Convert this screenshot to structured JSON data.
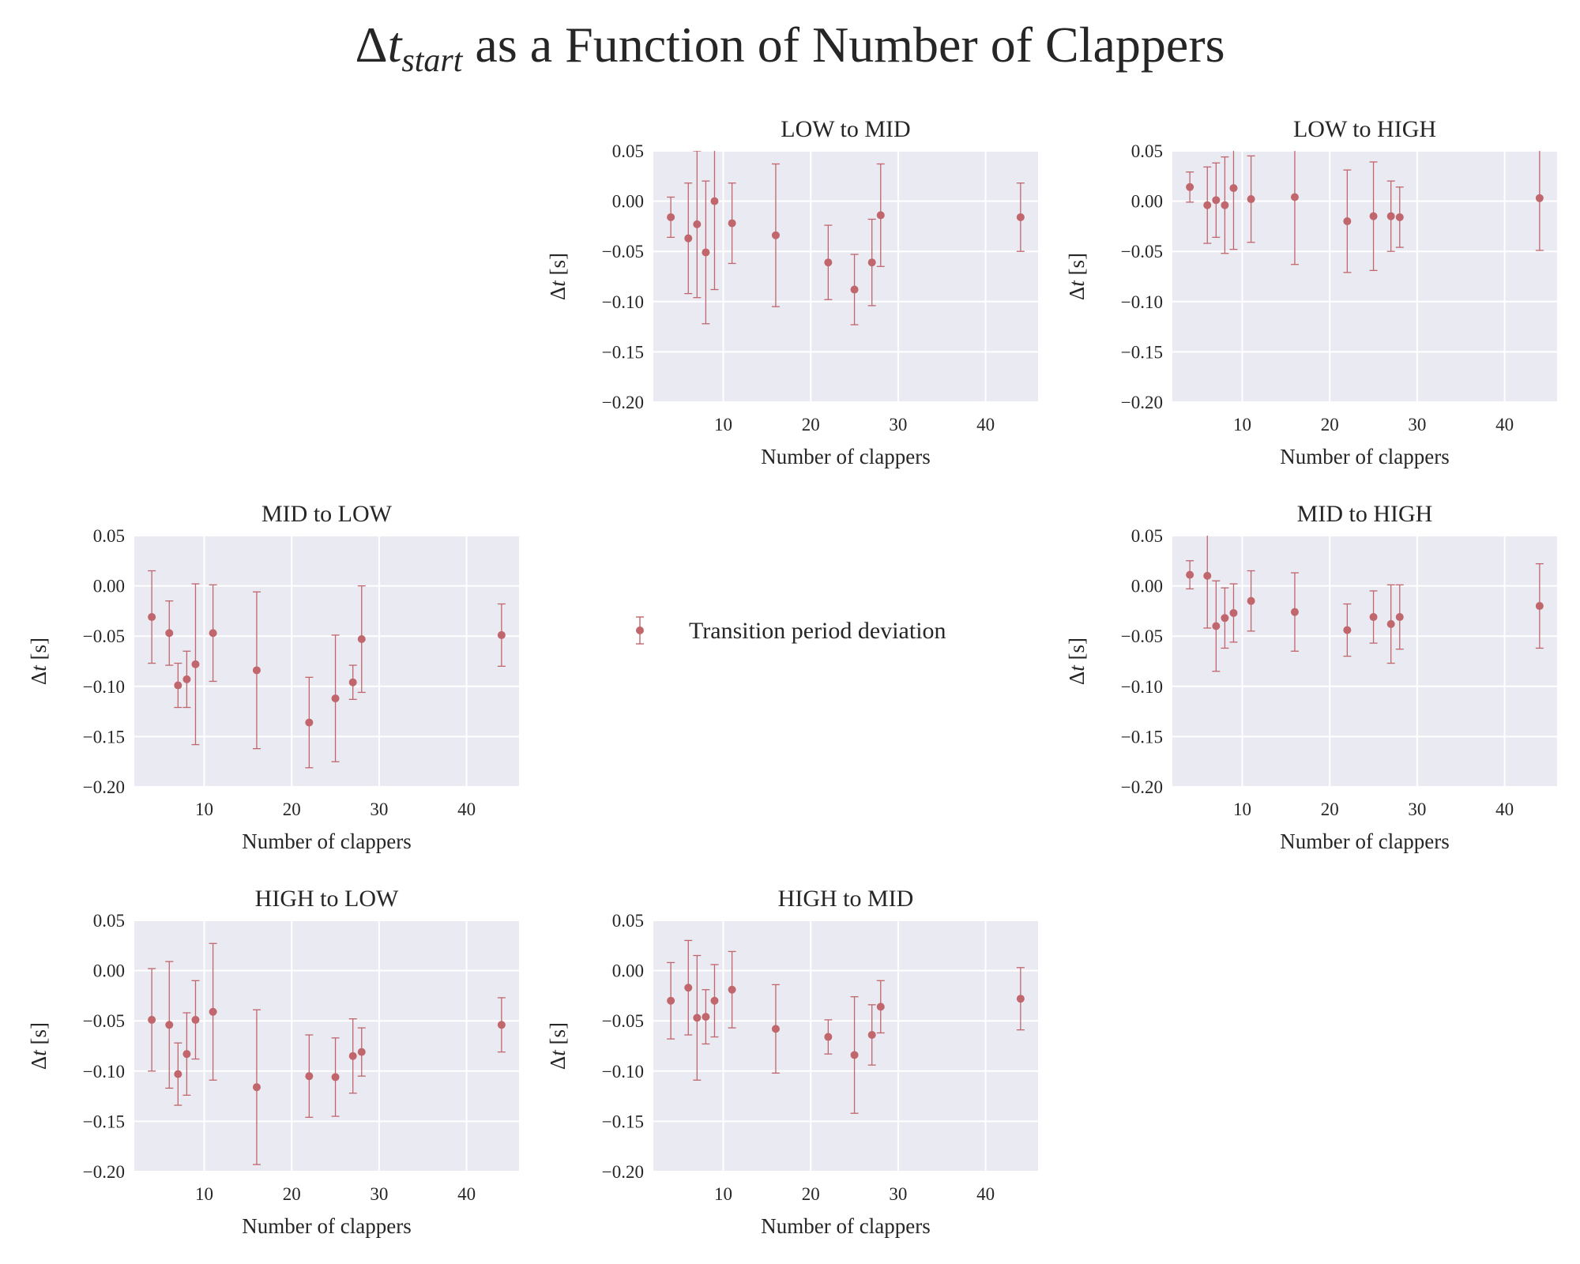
{
  "figure": {
    "title_prefix": "Δ",
    "title_var": "t",
    "title_sub": "start",
    "title_rest": " as a Function of Number of Clappers"
  },
  "legend": {
    "label": "Transition period deviation"
  },
  "style": {
    "marker_color": "#c0666c",
    "axes_bg": "#eaeaf2",
    "grid_color": "#ffffff"
  },
  "chart_data": [
    {
      "type": "scatter",
      "title": "LOW to MID",
      "xlabel": "Number of clappers",
      "ylabel_delta": "Δ",
      "ylabel_var": "t",
      "ylabel_unit": " [s]",
      "xlim": [
        2,
        46
      ],
      "ylim": [
        -0.2,
        0.05
      ],
      "xticks": [
        10,
        20,
        30,
        40
      ],
      "yticks": [
        0.05,
        0.0,
        -0.05,
        -0.1,
        -0.15,
        -0.2
      ],
      "series": [
        {
          "x": [
            4,
            6,
            7,
            8,
            9,
            11,
            16,
            22,
            25,
            27,
            28,
            44
          ],
          "y": [
            -0.016,
            -0.037,
            -0.023,
            -0.051,
            0.0,
            -0.022,
            -0.034,
            -0.061,
            -0.088,
            -0.061,
            -0.014,
            -0.016
          ],
          "yerr": [
            0.02,
            0.055,
            0.073,
            0.071,
            0.088,
            0.04,
            0.071,
            0.037,
            0.035,
            0.043,
            0.051,
            0.034
          ]
        }
      ]
    },
    {
      "type": "scatter",
      "title": "LOW to HIGH",
      "xlabel": "Number of clappers",
      "ylabel_delta": "Δ",
      "ylabel_var": "t",
      "ylabel_unit": " [s]",
      "xlim": [
        2,
        46
      ],
      "ylim": [
        -0.2,
        0.05
      ],
      "xticks": [
        10,
        20,
        30,
        40
      ],
      "yticks": [
        0.05,
        0.0,
        -0.05,
        -0.1,
        -0.15,
        -0.2
      ],
      "series": [
        {
          "x": [
            4,
            6,
            7,
            8,
            9,
            11,
            16,
            22,
            25,
            27,
            28,
            44
          ],
          "y": [
            0.014,
            -0.004,
            0.001,
            -0.004,
            0.013,
            0.002,
            0.004,
            -0.02,
            -0.015,
            -0.015,
            -0.016,
            0.003
          ],
          "yerr": [
            0.015,
            0.038,
            0.037,
            0.048,
            0.061,
            0.043,
            0.067,
            0.051,
            0.054,
            0.035,
            0.03,
            0.052
          ]
        }
      ]
    },
    {
      "type": "scatter",
      "title": "MID to LOW",
      "xlabel": "Number of clappers",
      "ylabel_delta": "Δ",
      "ylabel_var": "t",
      "ylabel_unit": " [s]",
      "xlim": [
        2,
        46
      ],
      "ylim": [
        -0.2,
        0.05
      ],
      "xticks": [
        10,
        20,
        30,
        40
      ],
      "yticks": [
        0.05,
        0.0,
        -0.05,
        -0.1,
        -0.15,
        -0.2
      ],
      "series": [
        {
          "x": [
            4,
            6,
            7,
            8,
            9,
            11,
            16,
            22,
            25,
            27,
            28,
            44
          ],
          "y": [
            -0.031,
            -0.047,
            -0.099,
            -0.093,
            -0.078,
            -0.047,
            -0.084,
            -0.136,
            -0.112,
            -0.096,
            -0.053,
            -0.049
          ],
          "yerr": [
            0.046,
            0.032,
            0.022,
            0.028,
            0.08,
            0.048,
            0.078,
            0.045,
            0.063,
            0.017,
            0.053,
            0.031
          ]
        }
      ]
    },
    {
      "type": "scatter",
      "title": "MID to HIGH",
      "xlabel": "Number of clappers",
      "ylabel_delta": "Δ",
      "ylabel_var": "t",
      "ylabel_unit": " [s]",
      "xlim": [
        2,
        46
      ],
      "ylim": [
        -0.2,
        0.05
      ],
      "xticks": [
        10,
        20,
        30,
        40
      ],
      "yticks": [
        0.05,
        0.0,
        -0.05,
        -0.1,
        -0.15,
        -0.2
      ],
      "series": [
        {
          "x": [
            4,
            6,
            7,
            8,
            9,
            11,
            16,
            22,
            25,
            27,
            28,
            44
          ],
          "y": [
            0.011,
            0.01,
            -0.04,
            -0.032,
            -0.027,
            -0.015,
            -0.026,
            -0.044,
            -0.031,
            -0.038,
            -0.031,
            -0.02
          ],
          "yerr": [
            0.014,
            0.052,
            0.045,
            0.03,
            0.029,
            0.03,
            0.039,
            0.026,
            0.026,
            0.039,
            0.032,
            0.042
          ]
        }
      ]
    },
    {
      "type": "scatter",
      "title": "HIGH to LOW",
      "xlabel": "Number of clappers",
      "ylabel_delta": "Δ",
      "ylabel_var": "t",
      "ylabel_unit": " [s]",
      "xlim": [
        2,
        46
      ],
      "ylim": [
        -0.2,
        0.05
      ],
      "xticks": [
        10,
        20,
        30,
        40
      ],
      "yticks": [
        0.05,
        0.0,
        -0.05,
        -0.1,
        -0.15,
        -0.2
      ],
      "series": [
        {
          "x": [
            4,
            6,
            7,
            8,
            9,
            11,
            16,
            22,
            25,
            27,
            28,
            44
          ],
          "y": [
            -0.049,
            -0.054,
            -0.103,
            -0.083,
            -0.049,
            -0.041,
            -0.116,
            -0.105,
            -0.106,
            -0.085,
            -0.081,
            -0.054
          ],
          "yerr": [
            0.051,
            0.063,
            0.031,
            0.041,
            0.039,
            0.068,
            0.077,
            0.041,
            0.039,
            0.037,
            0.024,
            0.027
          ]
        }
      ]
    },
    {
      "type": "scatter",
      "title": "HIGH to MID",
      "xlabel": "Number of clappers",
      "ylabel_delta": "Δ",
      "ylabel_var": "t",
      "ylabel_unit": " [s]",
      "xlim": [
        2,
        46
      ],
      "ylim": [
        -0.2,
        0.05
      ],
      "xticks": [
        10,
        20,
        30,
        40
      ],
      "yticks": [
        0.05,
        0.0,
        -0.05,
        -0.1,
        -0.15,
        -0.2
      ],
      "series": [
        {
          "x": [
            4,
            6,
            7,
            8,
            9,
            11,
            16,
            22,
            25,
            27,
            28,
            44
          ],
          "y": [
            -0.03,
            -0.017,
            -0.047,
            -0.046,
            -0.03,
            -0.019,
            -0.058,
            -0.066,
            -0.084,
            -0.064,
            -0.036,
            -0.028
          ],
          "yerr": [
            0.038,
            0.047,
            0.062,
            0.027,
            0.036,
            0.038,
            0.044,
            0.017,
            0.058,
            0.03,
            0.026,
            0.031
          ]
        }
      ]
    }
  ]
}
